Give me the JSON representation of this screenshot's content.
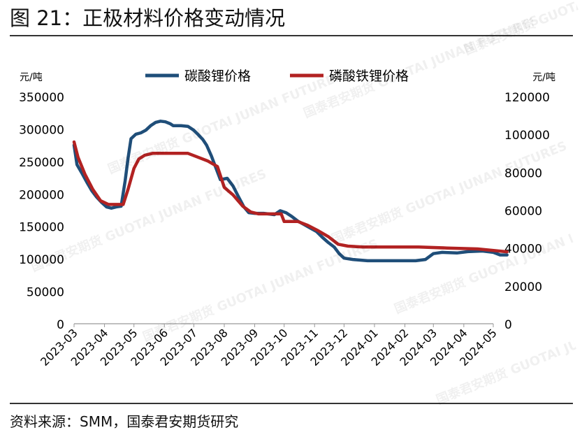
{
  "figure": {
    "title": "图 21：正极材料价格变动情况",
    "source": "资料来源：SMM，国泰君安期货研究",
    "watermark": "国泰君安期货 GUOTAI JUNAN FUTURES"
  },
  "chart_data": {
    "type": "line",
    "title": "图 21：正极材料价格变动情况",
    "y_left": {
      "unit": "元/吨",
      "ylim": [
        0,
        350000
      ],
      "ticks": [
        0,
        50000,
        100000,
        150000,
        200000,
        250000,
        300000,
        350000
      ]
    },
    "y_right": {
      "unit": "元/吨",
      "ylim": [
        0,
        120000
      ],
      "ticks": [
        0,
        20000,
        40000,
        60000,
        80000,
        100000,
        120000
      ]
    },
    "x_ticks": [
      "2023-03",
      "2023-04",
      "2023-05",
      "2023-06",
      "2023-07",
      "2023-08",
      "2023-09",
      "2023-10",
      "2023-11",
      "2023-12",
      "2024-01",
      "2024-02",
      "2024-03",
      "2024-04",
      "2024-05"
    ],
    "legend_position": "top",
    "grid": false,
    "series": [
      {
        "name": "碳酸锂价格",
        "axis": "left",
        "color": "#1f4e79",
        "points": [
          [
            "2023-03-01",
            275000
          ],
          [
            "2023-03-04",
            245000
          ],
          [
            "2023-03-09",
            232000
          ],
          [
            "2023-03-14",
            218000
          ],
          [
            "2023-03-19",
            205000
          ],
          [
            "2023-03-24",
            195000
          ],
          [
            "2023-03-29",
            187000
          ],
          [
            "2023-04-03",
            180000
          ],
          [
            "2023-04-08",
            178000
          ],
          [
            "2023-04-13",
            180000
          ],
          [
            "2023-04-18",
            181000
          ],
          [
            "2023-04-22",
            220000
          ],
          [
            "2023-04-25",
            255000
          ],
          [
            "2023-04-28",
            285000
          ],
          [
            "2023-05-03",
            292000
          ],
          [
            "2023-05-08",
            294000
          ],
          [
            "2023-05-13",
            298000
          ],
          [
            "2023-05-18",
            305000
          ],
          [
            "2023-05-23",
            310000
          ],
          [
            "2023-05-28",
            312000
          ],
          [
            "2023-06-02",
            311000
          ],
          [
            "2023-06-07",
            308000
          ],
          [
            "2023-06-10",
            305000
          ],
          [
            "2023-06-18",
            305000
          ],
          [
            "2023-06-25",
            304000
          ],
          [
            "2023-07-01",
            298000
          ],
          [
            "2023-07-05",
            292000
          ],
          [
            "2023-07-10",
            284000
          ],
          [
            "2023-07-14",
            275000
          ],
          [
            "2023-07-19",
            258000
          ],
          [
            "2023-07-24",
            238000
          ],
          [
            "2023-07-28",
            222000
          ],
          [
            "2023-08-04",
            224000
          ],
          [
            "2023-08-10",
            212000
          ],
          [
            "2023-08-15",
            197000
          ],
          [
            "2023-08-21",
            180000
          ],
          [
            "2023-08-26",
            171000
          ],
          [
            "2023-09-01",
            170000
          ],
          [
            "2023-09-10",
            170000
          ],
          [
            "2023-09-16",
            169000
          ],
          [
            "2023-09-21",
            168000
          ],
          [
            "2023-09-27",
            174000
          ],
          [
            "2023-10-03",
            171000
          ],
          [
            "2023-10-09",
            165000
          ],
          [
            "2023-10-15",
            158000
          ],
          [
            "2023-10-21",
            153000
          ],
          [
            "2023-10-27",
            148000
          ],
          [
            "2023-11-03",
            142000
          ],
          [
            "2023-11-09",
            133000
          ],
          [
            "2023-11-15",
            125000
          ],
          [
            "2023-11-21",
            118000
          ],
          [
            "2023-11-26",
            108000
          ],
          [
            "2023-12-01",
            101000
          ],
          [
            "2023-12-10",
            99000
          ],
          [
            "2023-12-25",
            97000
          ],
          [
            "2024-01-15",
            97000
          ],
          [
            "2024-02-01",
            97000
          ],
          [
            "2024-02-12",
            97000
          ],
          [
            "2024-02-22",
            99000
          ],
          [
            "2024-03-01",
            108000
          ],
          [
            "2024-03-10",
            110000
          ],
          [
            "2024-03-25",
            109000
          ],
          [
            "2024-04-05",
            111000
          ],
          [
            "2024-04-20",
            112000
          ],
          [
            "2024-05-01",
            110000
          ],
          [
            "2024-05-08",
            106000
          ],
          [
            "2024-05-15",
            106000
          ]
        ]
      },
      {
        "name": "磷酸铁锂价格",
        "axis": "right",
        "color": "#b22222",
        "points": [
          [
            "2023-03-01",
            96000
          ],
          [
            "2023-03-05",
            88000
          ],
          [
            "2023-03-12",
            79000
          ],
          [
            "2023-03-20",
            71000
          ],
          [
            "2023-03-28",
            65000
          ],
          [
            "2023-04-05",
            63000
          ],
          [
            "2023-04-20",
            63000
          ],
          [
            "2023-04-25",
            71000
          ],
          [
            "2023-05-01",
            82000
          ],
          [
            "2023-05-06",
            87000
          ],
          [
            "2023-05-12",
            89000
          ],
          [
            "2023-05-20",
            90000
          ],
          [
            "2023-06-10",
            90000
          ],
          [
            "2023-06-25",
            90000
          ],
          [
            "2023-07-05",
            88000
          ],
          [
            "2023-07-15",
            86000
          ],
          [
            "2023-07-25",
            83000
          ],
          [
            "2023-08-01",
            72000
          ],
          [
            "2023-08-10",
            68000
          ],
          [
            "2023-08-20",
            62000
          ],
          [
            "2023-08-28",
            59000
          ],
          [
            "2023-09-05",
            58000
          ],
          [
            "2023-09-28",
            58000
          ],
          [
            "2023-10-01",
            54000
          ],
          [
            "2023-10-15",
            54000
          ],
          [
            "2023-10-25",
            52000
          ],
          [
            "2023-11-05",
            49000
          ],
          [
            "2023-11-15",
            46000
          ],
          [
            "2023-11-25",
            42000
          ],
          [
            "2023-12-05",
            41000
          ],
          [
            "2023-12-20",
            40500
          ],
          [
            "2024-01-15",
            40500
          ],
          [
            "2024-02-15",
            40500
          ],
          [
            "2024-03-15",
            40000
          ],
          [
            "2024-04-15",
            39500
          ],
          [
            "2024-05-15",
            38000
          ]
        ]
      }
    ]
  }
}
